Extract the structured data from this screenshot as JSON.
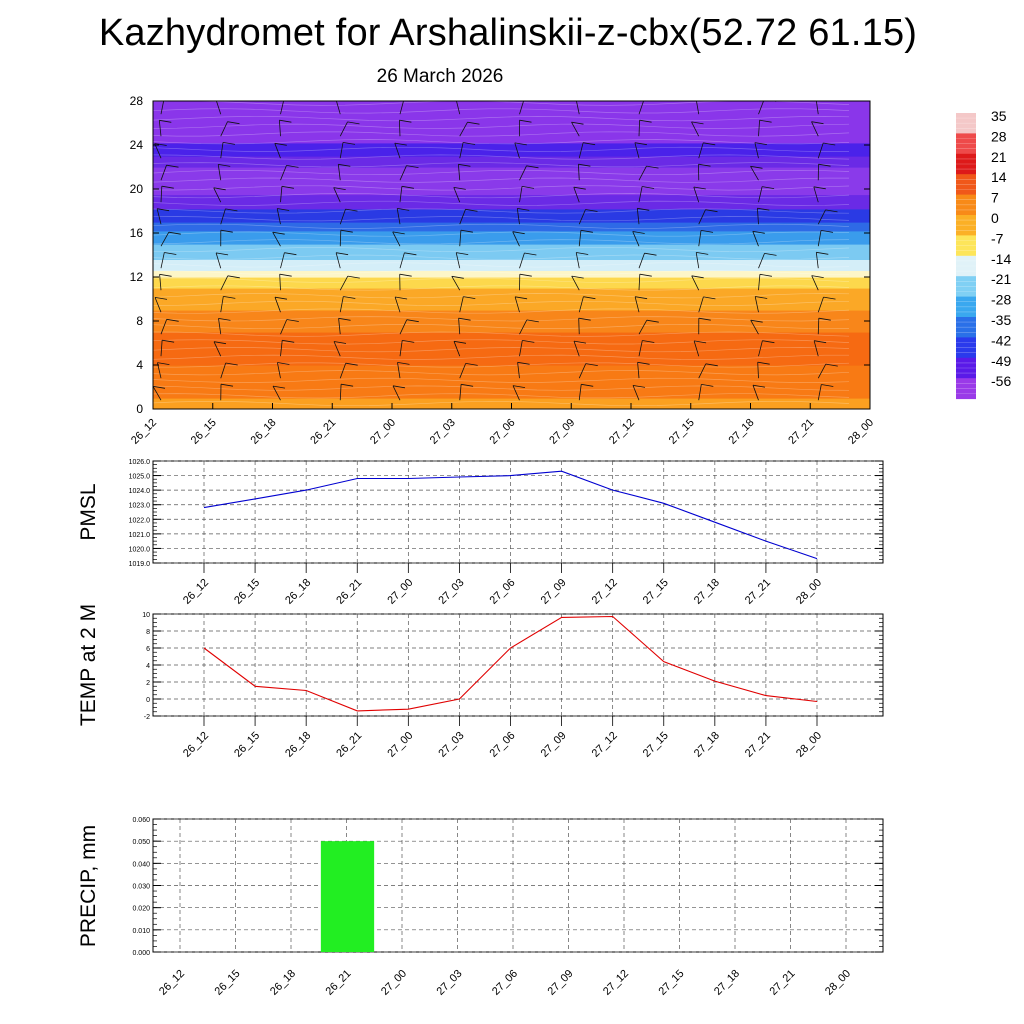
{
  "title": "Kazhydromet for Arshalinskii-z-cbx(52.72 61.15)",
  "subtitle": "26 March 2026",
  "chart_data": [
    {
      "id": "cross-section",
      "type": "heatmap",
      "y_ticks": [
        "0",
        "4",
        "8",
        "12",
        "16",
        "20",
        "24",
        "28"
      ],
      "ylim": [
        0,
        28
      ],
      "x_ticks": [
        "26_12",
        "26_15",
        "26_18",
        "26_21",
        "27_00",
        "27_03",
        "27_06",
        "27_09",
        "27_12",
        "27_15",
        "27_18",
        "27_21",
        "28_00"
      ],
      "colorbar": {
        "labels": [
          "35",
          "28",
          "21",
          "14",
          "7",
          "0",
          "-7",
          "-14",
          "-21",
          "-28",
          "-35",
          "-42",
          "-49",
          "-56"
        ],
        "colors": [
          "#f4c8c8",
          "#ee4a4a",
          "#dd1a1a",
          "#f0581a",
          "#f88a18",
          "#fbb026",
          "#fde55a",
          "#e0f2f8",
          "#80d0f4",
          "#3aa8ef",
          "#2a70e8",
          "#2a3aec",
          "#5a1ae8",
          "#9a3ae8"
        ]
      },
      "bands": [
        {
          "from": 0,
          "to": 1,
          "color": "#fba020"
        },
        {
          "from": 1,
          "to": 4,
          "color": "#f87a14"
        },
        {
          "from": 4,
          "to": 7,
          "color": "#f66a12"
        },
        {
          "from": 7,
          "to": 9,
          "color": "#f8861a"
        },
        {
          "from": 9,
          "to": 11,
          "color": "#fba826"
        },
        {
          "from": 11,
          "to": 12,
          "color": "#fdd84c"
        },
        {
          "from": 12,
          "to": 12.6,
          "color": "#fdf6c8"
        },
        {
          "from": 12.6,
          "to": 13.6,
          "color": "#d4eef8"
        },
        {
          "from": 13.6,
          "to": 15,
          "color": "#7ccaf2"
        },
        {
          "from": 15,
          "to": 16.2,
          "color": "#3a9cec"
        },
        {
          "from": 16.2,
          "to": 17,
          "color": "#2e6ae6"
        },
        {
          "from": 17,
          "to": 18.2,
          "color": "#2a3ae4"
        },
        {
          "from": 18.2,
          "to": 19.5,
          "color": "#6a2ae6"
        },
        {
          "from": 19.5,
          "to": 22,
          "color": "#8a3aea"
        },
        {
          "from": 22,
          "to": 23,
          "color": "#6a2ae6"
        },
        {
          "from": 23,
          "to": 24.2,
          "color": "#4a22ea"
        },
        {
          "from": 24.2,
          "to": 28,
          "color": "#8a36ea"
        }
      ]
    },
    {
      "id": "pmsl",
      "type": "line",
      "ylabel": "PMSL",
      "x": [
        "26_12",
        "26_15",
        "26_18",
        "26_21",
        "27_00",
        "27_03",
        "27_06",
        "27_09",
        "27_12",
        "27_15",
        "27_18",
        "27_21",
        "28_00"
      ],
      "y_ticks": [
        "1019.0",
        "1020.0",
        "1021.0",
        "1022.0",
        "1023.0",
        "1024.0",
        "1025.0",
        "1026.0"
      ],
      "ylim": [
        1019,
        1026
      ],
      "series": [
        {
          "values": [
            1022.8,
            1023.4,
            1024.0,
            1024.8,
            1024.8,
            1024.9,
            1025.0,
            1025.3,
            1024.0,
            1023.1,
            1021.8,
            1020.5,
            1019.3
          ],
          "color": "#0000d0"
        }
      ]
    },
    {
      "id": "temp",
      "type": "line",
      "ylabel": "TEMP at 2 M",
      "x": [
        "26_12",
        "26_15",
        "26_18",
        "26_21",
        "27_00",
        "27_03",
        "27_06",
        "27_09",
        "27_12",
        "27_15",
        "27_18",
        "27_21",
        "28_00"
      ],
      "y_ticks": [
        "-2",
        "0",
        "2",
        "4",
        "6",
        "8",
        "10"
      ],
      "ylim": [
        -2,
        10
      ],
      "series": [
        {
          "values": [
            6.0,
            1.5,
            1.0,
            -1.4,
            -1.2,
            0.0,
            6.0,
            9.6,
            9.7,
            4.4,
            2.1,
            0.4,
            -0.3
          ],
          "color": "#e00000"
        }
      ]
    },
    {
      "id": "precip",
      "type": "bar",
      "ylabel": "PRECIP, mm",
      "categories": [
        "26_12",
        "26_15",
        "26_18",
        "26_21",
        "27_00",
        "27_03",
        "27_06",
        "27_09",
        "27_12",
        "27_15",
        "27_18",
        "27_21",
        "28_00"
      ],
      "y_ticks": [
        "0.000",
        "0.010",
        "0.020",
        "0.030",
        "0.040",
        "0.050",
        "0.060"
      ],
      "ylim": [
        0,
        0.06
      ],
      "values": [
        0,
        0,
        0,
        0.05,
        0,
        0,
        0,
        0,
        0,
        0,
        0,
        0,
        0
      ],
      "color": "#22ee22"
    }
  ]
}
